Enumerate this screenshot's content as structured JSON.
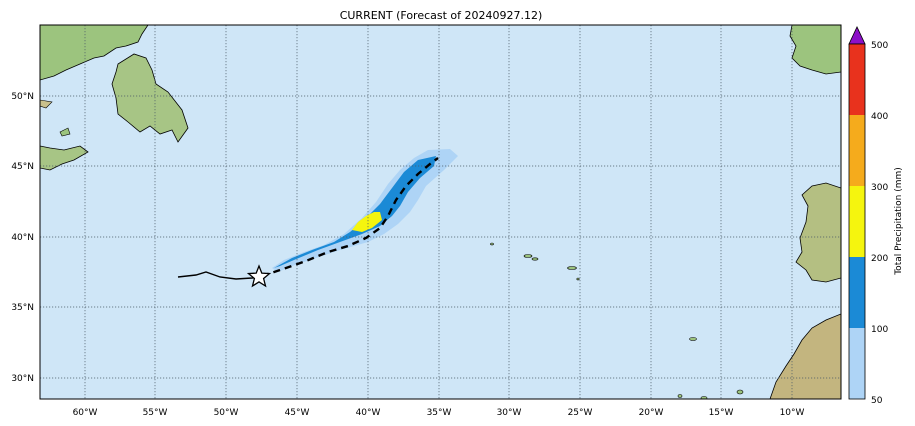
{
  "title": "CURRENT (Forecast of 20240927.12)",
  "map": {
    "lon_range": [
      -63,
      -6.5
    ],
    "lat_range": [
      28.5,
      55
    ],
    "lon_ticks": [
      -60,
      -55,
      -50,
      -45,
      -40,
      -35,
      -30,
      -25,
      -20,
      -15,
      -10
    ],
    "lon_tick_labels": [
      "60°W",
      "55°W",
      "50°W",
      "45°W",
      "40°W",
      "35°W",
      "30°W",
      "25°W",
      "20°W",
      "15°W",
      "10°W"
    ],
    "lat_ticks": [
      30,
      35,
      40,
      45,
      50
    ],
    "lat_tick_labels": [
      "30°N",
      "35°N",
      "40°N",
      "45°N",
      "50°N"
    ],
    "grid": "dotted",
    "ocean_color": "#cfe6f7",
    "land_color": "#9cc47e"
  },
  "storm": {
    "current_position": [
      -47.6,
      37.1
    ],
    "past_track": [
      [
        -53.4,
        37.2
      ],
      [
        -52.2,
        37.3
      ],
      [
        -51.3,
        37.5
      ],
      [
        -50.3,
        37.2
      ],
      [
        -49.2,
        37.0
      ],
      [
        -48.2,
        37.1
      ],
      [
        -47.6,
        37.1
      ]
    ],
    "forecast_track": [
      [
        -47.6,
        37.1
      ],
      [
        -46.0,
        37.6
      ],
      [
        -44.5,
        38.2
      ],
      [
        -43.0,
        38.9
      ],
      [
        -41.5,
        39.5
      ],
      [
        -40.0,
        40.2
      ],
      [
        -38.7,
        41.2
      ],
      [
        -37.8,
        42.6
      ],
      [
        -37.0,
        44.0
      ],
      [
        -36.2,
        45.1
      ],
      [
        -35.5,
        45.7
      ]
    ]
  },
  "legend": {
    "label": "Total Precipitation (mm)",
    "levels": [
      50,
      100,
      200,
      300,
      400,
      500
    ],
    "tick_labels": [
      "50",
      "100",
      "200",
      "300",
      "400",
      "500"
    ],
    "colors": [
      "#aed4f6",
      "#1b8ad6",
      "#f5f50e",
      "#f5ab1c",
      "#e8321d"
    ],
    "extend_color": "#8c10c8"
  }
}
